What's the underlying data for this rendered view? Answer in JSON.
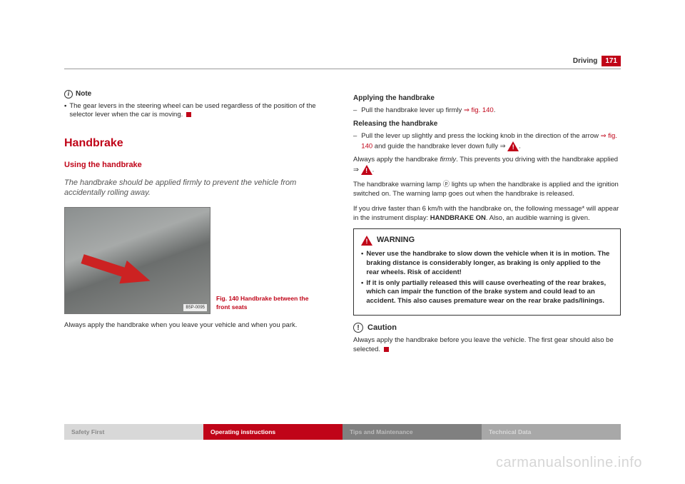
{
  "header": {
    "section": "Driving",
    "page": "171"
  },
  "note": {
    "label": "Note",
    "text": "The gear levers in the steering wheel can be used regardless of the position of the selector lever when the car is moving."
  },
  "section_title": "Handbrake",
  "subsection_title": "Using the handbrake",
  "intro": "The handbrake should be applied firmly to prevent the vehicle from accidentally rolling away.",
  "figure": {
    "tag": "B5P-0095",
    "caption": "Fig. 140  Handbrake between the front seats"
  },
  "left_para": "Always apply the handbrake when you leave your vehicle and when you park.",
  "right": {
    "apply_title": "Applying the handbrake",
    "apply_text_a": "Pull the handbrake lever up firmly ",
    "apply_link": "⇒ fig. 140",
    "apply_text_b": ".",
    "release_title": "Releasing the handbrake",
    "release_text_a": "Pull the lever up slightly and press the locking knob in the direction of the arrow ",
    "release_link": "⇒ fig. 140",
    "release_text_b": " and guide the handbrake lever down fully ⇒ ",
    "para1_a": "Always apply the handbrake ",
    "para1_i": "firmly",
    "para1_b": ". This prevents you driving with the handbrake applied ⇒ ",
    "para2": "The handbrake warning lamp ⓟ lights up when the handbrake is applied and the ignition switched on. The warning lamp goes out when the handbrake is released.",
    "para3_a": "If you drive faster than 6 km/h with the handbrake on, the following message* will appear in the instrument display: ",
    "para3_b": "HANDBRAKE ON",
    "para3_c": ". Also, an audible warning is given."
  },
  "warning": {
    "title": "WARNING",
    "b1": "Never use the handbrake to slow down the vehicle when it is in motion. The braking distance is considerably longer, as braking is only applied to the rear wheels. Risk of accident!",
    "b2": "If it is only partially released this will cause overheating of the rear brakes, which can impair the function of the brake system and could lead to an accident. This also causes premature wear on the rear brake pads/linings."
  },
  "caution": {
    "label": "Caution",
    "text": "Always apply the handbrake before you leave the vehicle. The first gear should also be selected."
  },
  "footer": {
    "a": "Safety First",
    "b": "Operating instructions",
    "c": "Tips and Maintenance",
    "d": "Technical Data"
  },
  "watermark": "carmanualsonline.info"
}
